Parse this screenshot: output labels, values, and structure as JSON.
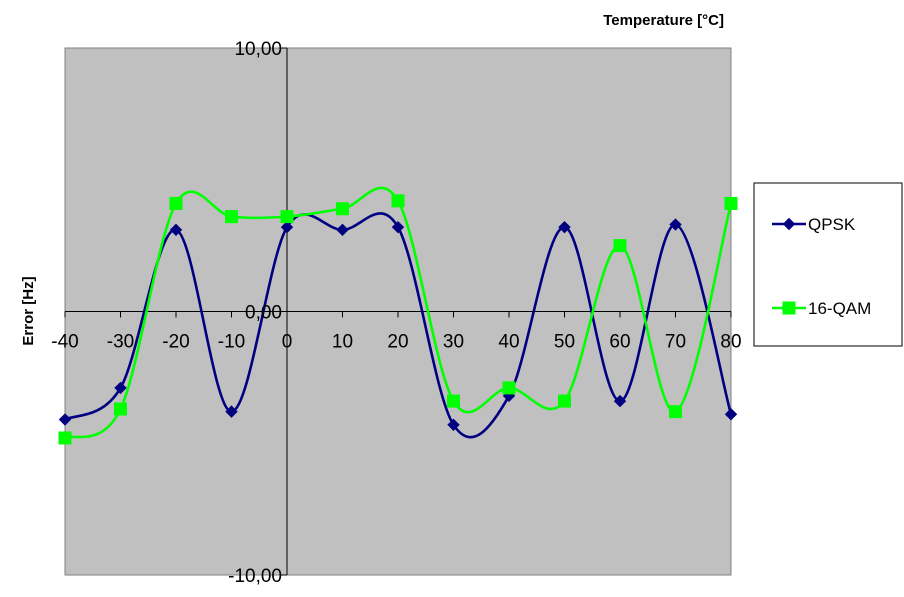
{
  "chart_data": {
    "type": "line",
    "xlabel": "Temperature  [°C]",
    "ylabel": "Error [Hz]",
    "x": [
      -40,
      -30,
      -20,
      -10,
      0,
      10,
      20,
      30,
      40,
      50,
      60,
      70,
      80
    ],
    "xlim": [
      -40,
      80
    ],
    "ylim": [
      -10,
      10
    ],
    "x_ticks": [
      -40,
      -30,
      -20,
      -10,
      0,
      10,
      20,
      30,
      40,
      50,
      60,
      70,
      80
    ],
    "x_tick_labels": [
      "-40",
      "-30",
      "-20",
      "-10",
      "0",
      "10",
      "20",
      "30",
      "40",
      "50",
      "60",
      "70",
      "80"
    ],
    "y_ticks": [
      -10,
      0,
      10
    ],
    "y_tick_labels": [
      "-10,00",
      "0,00",
      "10,00"
    ],
    "grid": false,
    "smooth": true,
    "legend": "right",
    "series": [
      {
        "name": "QPSK",
        "color": "#000080",
        "marker": "diamond",
        "values": [
          -4.1,
          -2.9,
          3.1,
          -3.8,
          3.2,
          3.1,
          3.2,
          -4.3,
          -3.2,
          3.2,
          -3.4,
          3.3,
          -3.9
        ]
      },
      {
        "name": "16-QAM",
        "color": "#00FF00",
        "marker": "square",
        "values": [
          -4.8,
          -3.7,
          4.1,
          3.6,
          3.6,
          3.9,
          4.2,
          -3.4,
          -2.9,
          -3.4,
          2.5,
          -3.8,
          4.1
        ]
      }
    ]
  }
}
